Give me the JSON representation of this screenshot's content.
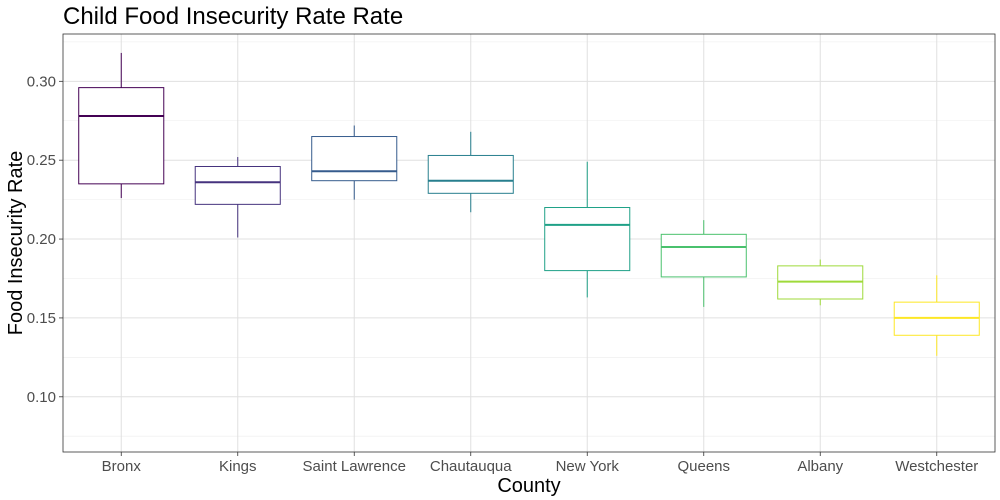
{
  "chart_data": {
    "type": "boxplot",
    "title": "Child Food Insecurity Rate Rate",
    "xlabel": "County",
    "ylabel": "Food Insecurity Rate",
    "ylim": [
      0.065,
      0.33
    ],
    "yticks": [
      0.1,
      0.15,
      0.2,
      0.25,
      0.3
    ],
    "ytick_labels": [
      "0.10",
      "0.15",
      "0.20",
      "0.25",
      "0.30"
    ],
    "grid": true,
    "legend": "none",
    "categories": [
      "Bronx",
      "Kings",
      "Saint Lawrence",
      "Chautauqua",
      "New York",
      "Queens",
      "Albany",
      "Westchester"
    ],
    "boxes": [
      {
        "category": "Bronx",
        "min": 0.226,
        "q1": 0.235,
        "median": 0.278,
        "q3": 0.296,
        "max": 0.318,
        "color": "#440154"
      },
      {
        "category": "Kings",
        "min": 0.201,
        "q1": 0.222,
        "median": 0.236,
        "q3": 0.246,
        "max": 0.252,
        "color": "#46337E"
      },
      {
        "category": "Saint Lawrence",
        "min": 0.225,
        "q1": 0.237,
        "median": 0.243,
        "q3": 0.265,
        "max": 0.272,
        "color": "#365C8D"
      },
      {
        "category": "Chautauqua",
        "min": 0.217,
        "q1": 0.229,
        "median": 0.237,
        "q3": 0.253,
        "max": 0.268,
        "color": "#277F8E"
      },
      {
        "category": "New York",
        "min": 0.163,
        "q1": 0.18,
        "median": 0.209,
        "q3": 0.22,
        "max": 0.249,
        "color": "#1FA187"
      },
      {
        "category": "Queens",
        "min": 0.157,
        "q1": 0.176,
        "median": 0.195,
        "q3": 0.203,
        "max": 0.212,
        "color": "#4AC16D"
      },
      {
        "category": "Albany",
        "min": 0.158,
        "q1": 0.162,
        "median": 0.173,
        "q3": 0.183,
        "max": 0.187,
        "color": "#9FDA3A"
      },
      {
        "category": "Westchester",
        "min": 0.126,
        "q1": 0.139,
        "median": 0.15,
        "q3": 0.16,
        "max": 0.177,
        "color": "#FDE725"
      }
    ]
  }
}
